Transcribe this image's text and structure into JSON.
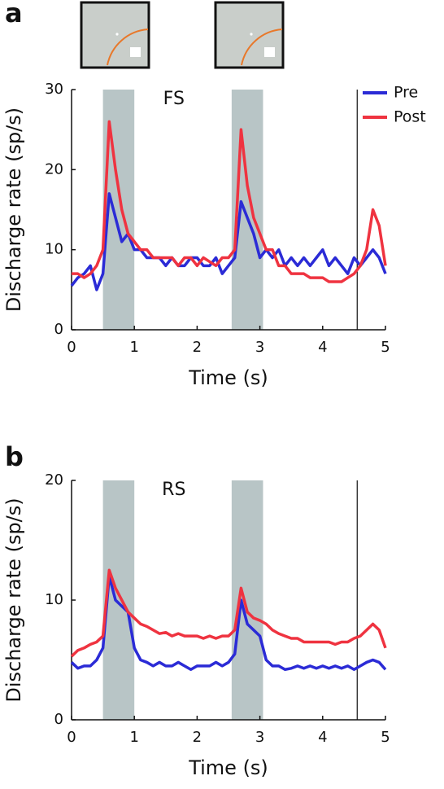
{
  "chart_data": [
    {
      "type": "line",
      "panel_label": "a",
      "title": "FS",
      "xlabel": "Time (s)",
      "ylabel": "Discharge rate (sp/s)",
      "x": [
        0,
        0.1,
        0.2,
        0.3,
        0.4,
        0.5,
        0.6,
        0.7,
        0.8,
        0.9,
        1,
        1.1,
        1.2,
        1.3,
        1.4,
        1.5,
        1.6,
        1.7,
        1.8,
        1.9,
        2,
        2.1,
        2.2,
        2.3,
        2.4,
        2.5,
        2.6,
        2.7,
        2.8,
        2.9,
        3,
        3.1,
        3.2,
        3.3,
        3.4,
        3.5,
        3.6,
        3.7,
        3.8,
        3.9,
        4,
        4.1,
        4.2,
        4.3,
        4.4,
        4.5,
        4.6,
        4.7,
        4.8,
        4.9,
        5
      ],
      "series": [
        {
          "name": "Pre",
          "color": "#2b2bd6",
          "values": [
            5.5,
            6.5,
            7,
            8,
            5,
            7,
            17,
            14,
            11,
            12,
            10,
            10,
            9,
            9,
            9,
            8,
            9,
            8,
            8,
            9,
            9,
            8,
            8,
            9,
            7,
            8,
            9,
            16,
            14,
            12,
            9,
            10,
            9,
            10,
            8,
            9,
            8,
            9,
            8,
            9,
            10,
            8,
            9,
            8,
            7,
            9,
            8,
            9,
            10,
            9,
            7
          ]
        },
        {
          "name": "Post",
          "color": "#ef3340",
          "values": [
            7,
            7,
            6.5,
            7,
            8,
            10,
            26,
            20,
            15,
            12,
            11,
            10,
            10,
            9,
            9,
            9,
            9,
            8,
            9,
            9,
            8,
            9,
            8.5,
            8,
            9,
            9,
            10,
            25,
            18,
            14,
            12,
            10,
            10,
            8,
            8,
            7,
            7,
            7,
            6.5,
            6.5,
            6.5,
            6,
            6,
            6,
            6.5,
            7,
            8,
            10,
            15,
            13,
            8
          ]
        }
      ],
      "shaded_regions": [
        [
          0.5,
          1.0
        ],
        [
          2.55,
          3.05
        ]
      ],
      "vline": 4.55,
      "xlim": [
        0,
        5
      ],
      "xticks": [
        0,
        1,
        2,
        3,
        4,
        5
      ],
      "ylim": [
        0,
        30
      ],
      "yticks": [
        0,
        10,
        20,
        30
      ],
      "legend": "upper right"
    },
    {
      "type": "line",
      "panel_label": "b",
      "title": "RS",
      "xlabel": "Time (s)",
      "ylabel": "Discharge rate (sp/s)",
      "x": [
        0,
        0.1,
        0.2,
        0.3,
        0.4,
        0.5,
        0.6,
        0.7,
        0.8,
        0.9,
        1,
        1.1,
        1.2,
        1.3,
        1.4,
        1.5,
        1.6,
        1.7,
        1.8,
        1.9,
        2,
        2.1,
        2.2,
        2.3,
        2.4,
        2.5,
        2.6,
        2.7,
        2.8,
        2.9,
        3,
        3.1,
        3.2,
        3.3,
        3.4,
        3.5,
        3.6,
        3.7,
        3.8,
        3.9,
        4,
        4.1,
        4.2,
        4.3,
        4.4,
        4.5,
        4.6,
        4.7,
        4.8,
        4.9,
        5
      ],
      "series": [
        {
          "color": "#2b2bd6",
          "values": [
            4.8,
            4.3,
            4.5,
            4.5,
            5,
            6,
            12,
            10,
            9.5,
            9,
            6,
            5,
            4.8,
            4.5,
            4.8,
            4.5,
            4.5,
            4.8,
            4.5,
            4.2,
            4.5,
            4.5,
            4.5,
            4.8,
            4.5,
            4.8,
            5.5,
            10,
            8,
            7.5,
            7,
            5,
            4.5,
            4.5,
            4.2,
            4.3,
            4.5,
            4.3,
            4.5,
            4.3,
            4.5,
            4.3,
            4.5,
            4.3,
            4.5,
            4.2,
            4.5,
            4.8,
            5,
            4.8,
            4.2
          ]
        },
        {
          "color": "#ef3340",
          "values": [
            5.3,
            5.8,
            6,
            6.3,
            6.5,
            7,
            12.5,
            11,
            10,
            9,
            8.5,
            8,
            7.8,
            7.5,
            7.2,
            7.3,
            7,
            7.2,
            7,
            7,
            7,
            6.8,
            7,
            6.8,
            7,
            7,
            7.5,
            11,
            9,
            8.5,
            8.3,
            8,
            7.5,
            7.2,
            7,
            6.8,
            6.8,
            6.5,
            6.5,
            6.5,
            6.5,
            6.5,
            6.3,
            6.5,
            6.5,
            6.8,
            7,
            7.5,
            8,
            7.5,
            6
          ]
        }
      ],
      "shaded_regions": [
        [
          0.5,
          1.0
        ],
        [
          2.55,
          3.05
        ]
      ],
      "vline": 4.55,
      "xlim": [
        0,
        5
      ],
      "xticks": [
        0,
        1,
        2,
        3,
        4,
        5
      ],
      "ylim": [
        0,
        20
      ],
      "yticks": [
        0,
        10,
        20
      ]
    }
  ]
}
